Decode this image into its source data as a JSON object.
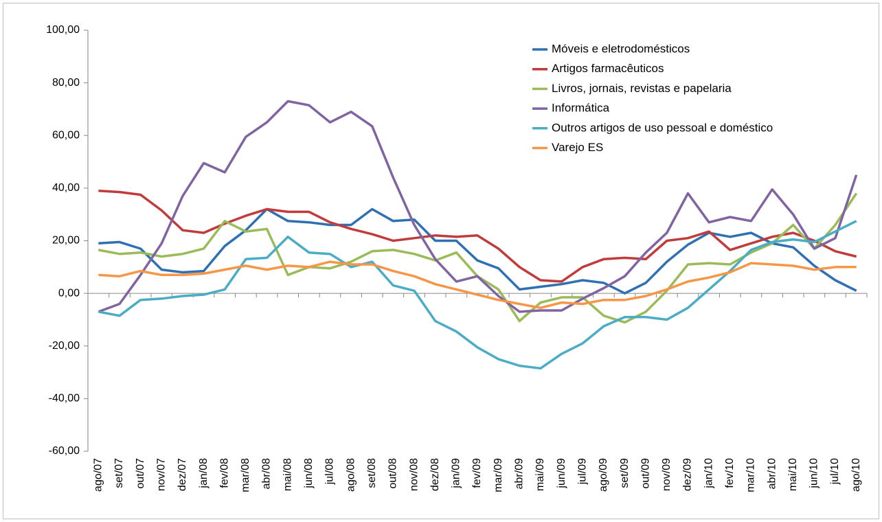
{
  "chart_data": {
    "type": "line",
    "categories": [
      "ago/07",
      "set/07",
      "out/07",
      "nov/07",
      "dez/07",
      "jan/08",
      "fev/08",
      "mar/08",
      "abr/08",
      "mai/08",
      "jun/08",
      "jul/08",
      "ago/08",
      "set/08",
      "out/08",
      "nov/08",
      "dez/08",
      "jan/09",
      "fev/09",
      "mar/09",
      "abr/09",
      "mai/09",
      "jun/09",
      "jul/09",
      "ago/09",
      "set/09",
      "out/09",
      "nov/09",
      "dez/09",
      "jan/10",
      "fev/10",
      "mar/10",
      "abr/10",
      "mai/10",
      "jun/10",
      "jul/10",
      "ago/10"
    ],
    "series": [
      {
        "name": "Móveis e eletrodomésticos",
        "color": "#2f70b3",
        "values": [
          19,
          19.5,
          17,
          9,
          8,
          8.5,
          18,
          24,
          32,
          27.5,
          27,
          26,
          26,
          32,
          27.5,
          28,
          20,
          20,
          12.5,
          9.5,
          1.5,
          2.5,
          3.5,
          5,
          4,
          0,
          4,
          12,
          18.5,
          23,
          21.5,
          23,
          19,
          17.5,
          10.5,
          5,
          1
        ]
      },
      {
        "name": "Artigos farmacêuticos",
        "color": "#c23b3b",
        "values": [
          39,
          38.5,
          37.5,
          31.5,
          24,
          23,
          26.5,
          29.5,
          32,
          31,
          31,
          27,
          24.5,
          22.5,
          20,
          21,
          22,
          21.5,
          22,
          17,
          10,
          5,
          4.5,
          10,
          13,
          13.5,
          13,
          20,
          21,
          23.5,
          16.5,
          19,
          21.5,
          23,
          20,
          16,
          14
        ]
      },
      {
        "name": "Livros, jornais, revistas e papelaria",
        "color": "#9bbb59",
        "values": [
          16.5,
          15,
          15.5,
          14,
          15,
          17,
          27.5,
          23.5,
          24.5,
          7,
          10,
          9.5,
          12,
          16,
          16.5,
          15,
          12.5,
          15.5,
          6.5,
          1.5,
          -10.5,
          -3.5,
          -1.5,
          -1.5,
          -8.5,
          -11,
          -7,
          1,
          11,
          11.5,
          11,
          15.5,
          19,
          26,
          17,
          26,
          38
        ]
      },
      {
        "name": "Informática",
        "color": "#8064a2",
        "values": [
          -7,
          -4,
          7,
          19,
          37,
          49.5,
          46,
          59.5,
          65,
          73,
          71.5,
          65,
          69,
          63.5,
          44,
          26,
          13,
          4.5,
          6.5,
          -1,
          -7,
          -6.5,
          -6.5,
          -2,
          2,
          6.5,
          15.5,
          23,
          38,
          27,
          29,
          27.5,
          39.5,
          30,
          17,
          21,
          45
        ]
      },
      {
        "name": "Outros artigos de uso pessoal e doméstico",
        "color": "#4bacc6",
        "values": [
          -7,
          -8.5,
          -2.5,
          -2,
          -1,
          -0.5,
          1.5,
          13,
          13.5,
          21.5,
          15.5,
          15,
          10,
          12,
          3,
          1,
          -10.5,
          -14.5,
          -20.5,
          -25,
          -27.5,
          -28.5,
          -23,
          -19,
          -12.5,
          -9,
          -9,
          -10,
          -5.5,
          1.5,
          8.5,
          16.5,
          19.5,
          20.5,
          19.5,
          23.5,
          27.5
        ]
      },
      {
        "name": "Varejo ES",
        "color": "#f79646",
        "values": [
          7,
          6.5,
          8.5,
          7,
          7,
          7.5,
          9,
          10.5,
          9,
          10.5,
          10,
          12,
          11,
          11,
          8.5,
          6.5,
          3.5,
          1.5,
          -0.5,
          -2.5,
          -4,
          -5.5,
          -3.5,
          -4,
          -2.5,
          -2.5,
          -1,
          1.5,
          4.5,
          6,
          8,
          11.5,
          11,
          10.5,
          9,
          10,
          10
        ]
      }
    ],
    "ylim": [
      -60,
      100
    ],
    "yticks": [
      {
        "value": -60,
        "label": "-60,00"
      },
      {
        "value": -40,
        "label": "-40,00"
      },
      {
        "value": -20,
        "label": "-20,00"
      },
      {
        "value": 0,
        "label": "0,00"
      },
      {
        "value": 20,
        "label": "20,00"
      },
      {
        "value": 40,
        "label": "40,00"
      },
      {
        "value": 60,
        "label": "60,00"
      },
      {
        "value": 80,
        "label": "80,00"
      },
      {
        "value": 100,
        "label": "100,00"
      }
    ],
    "grid": false,
    "legend": "top-right"
  }
}
